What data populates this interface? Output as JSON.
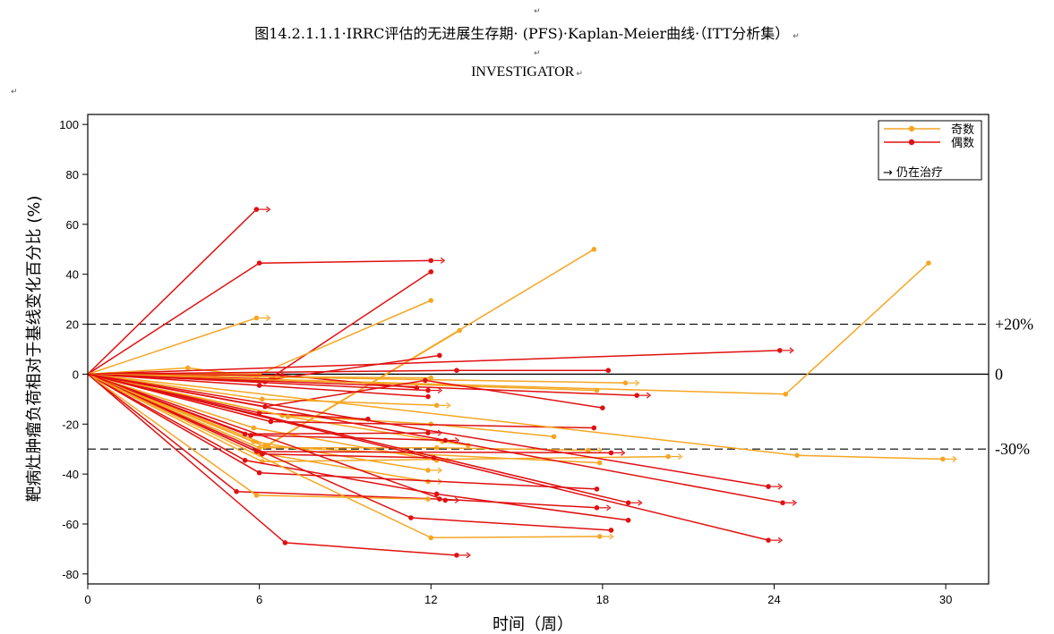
{
  "document": {
    "title": "图14.2.1.1.1·IRRC评估的无进展生存期· (PFS)·Kaplan-Meier曲线·（ITT分析集）",
    "subtitle": "INVESTIGATOR",
    "para_mark": "↵"
  },
  "chart_data": {
    "type": "line",
    "xlabel": "时间（周）",
    "ylabel": "靶病灶肿瘤负荷相对于基线变化百分比 (%)",
    "xlim": [
      0,
      31.5
    ],
    "ylim": [
      -84,
      104
    ],
    "xticks": [
      0,
      6,
      12,
      18,
      24,
      30
    ],
    "yticks": [
      100,
      80,
      60,
      40,
      20,
      0,
      -20,
      -40,
      -60,
      -80
    ],
    "reference_lines": [
      {
        "y": 20,
        "label": "+20%",
        "style": "dashed"
      },
      {
        "y": 0,
        "label": "0",
        "style": "solid"
      },
      {
        "y": -30,
        "label": "-30%",
        "style": "dashed"
      }
    ],
    "legend": {
      "position": "top-right",
      "entries": [
        {
          "label": "奇数",
          "color": "#F5A623"
        },
        {
          "label": "偶数",
          "color": "#E01010"
        }
      ],
      "ongoing_label": "→ 仍在治疗"
    },
    "colors": {
      "odd": "#F5A623",
      "even": "#E01010"
    },
    "series": [
      {
        "group": "even",
        "x": [
          0,
          5.9
        ],
        "y": [
          0,
          66
        ],
        "ongoing": true
      },
      {
        "group": "even",
        "x": [
          0,
          6,
          12
        ],
        "y": [
          0,
          44.5,
          45.5
        ],
        "ongoing": true
      },
      {
        "group": "even",
        "x": [
          0,
          6.2,
          12
        ],
        "y": [
          0,
          -3,
          41
        ]
      },
      {
        "group": "odd",
        "x": [
          0,
          5.9
        ],
        "y": [
          0,
          22.5
        ],
        "ongoing": true
      },
      {
        "group": "odd",
        "x": [
          0,
          6,
          12
        ],
        "y": [
          0,
          0,
          29.5
        ]
      },
      {
        "group": "odd",
        "x": [
          0,
          6.2,
          17.7
        ],
        "y": [
          0,
          -29,
          50
        ]
      },
      {
        "group": "odd",
        "x": [
          0,
          6.3,
          13
        ],
        "y": [
          0,
          -28.5,
          17.5
        ]
      },
      {
        "group": "odd",
        "x": [
          0,
          3.5,
          5.9,
          12
        ],
        "y": [
          0,
          2.5,
          -1,
          -1.5
        ]
      },
      {
        "group": "odd",
        "x": [
          0,
          24.4,
          29.4
        ],
        "y": [
          0,
          -8,
          44.5
        ]
      },
      {
        "group": "even",
        "x": [
          0,
          12.9,
          18.2
        ],
        "y": [
          0,
          1.5,
          1.5
        ]
      },
      {
        "group": "even",
        "x": [
          0,
          6.5,
          12.3
        ],
        "y": [
          0,
          -2,
          7.5
        ]
      },
      {
        "group": "even",
        "x": [
          0,
          24.2
        ],
        "y": [
          0,
          9.5
        ],
        "ongoing": true
      },
      {
        "group": "even",
        "x": [
          0,
          6.8,
          11.5
        ],
        "y": [
          0,
          -0.5,
          -5.5
        ]
      },
      {
        "group": "odd",
        "x": [
          0,
          18.8
        ],
        "y": [
          0,
          -3.5
        ],
        "ongoing": true
      },
      {
        "group": "odd",
        "x": [
          0,
          17.8
        ],
        "y": [
          0,
          -6.5
        ]
      },
      {
        "group": "even",
        "x": [
          0,
          19.2
        ],
        "y": [
          0,
          -8.5
        ],
        "ongoing": true
      },
      {
        "group": "even",
        "x": [
          0,
          11.9
        ],
        "y": [
          0,
          -6.5
        ],
        "ongoing": true
      },
      {
        "group": "even",
        "x": [
          0,
          6,
          11.9
        ],
        "y": [
          0,
          -4.5,
          -9
        ]
      },
      {
        "group": "odd",
        "x": [
          0,
          6.1,
          12.2
        ],
        "y": [
          0,
          -10,
          -12.5
        ],
        "ongoing": true
      },
      {
        "group": "even",
        "x": [
          0,
          6.2,
          11.8,
          18
        ],
        "y": [
          0,
          -13,
          -2.5,
          -13.5
        ]
      },
      {
        "group": "odd",
        "x": [
          0,
          6.8,
          12,
          16.3
        ],
        "y": [
          0,
          -16.5,
          -20,
          -25
        ]
      },
      {
        "group": "even",
        "x": [
          0,
          6,
          9.8
        ],
        "y": [
          0,
          -15.5,
          -18
        ]
      },
      {
        "group": "odd",
        "x": [
          0,
          7,
          12.4,
          13.3
        ],
        "y": [
          0,
          -17,
          -27,
          -28.5
        ]
      },
      {
        "group": "even",
        "x": [
          0,
          6.4,
          17.7
        ],
        "y": [
          0,
          -19,
          -21.5
        ]
      },
      {
        "group": "odd",
        "x": [
          0,
          5.8,
          12.2
        ],
        "y": [
          0,
          -21.5,
          -34.5
        ],
        "ongoing": true
      },
      {
        "group": "odd",
        "x": [
          0,
          5.8,
          11.9
        ],
        "y": [
          0,
          -27,
          -38.5
        ],
        "ongoing": true
      },
      {
        "group": "even",
        "x": [
          0,
          5.5,
          11.9
        ],
        "y": [
          0,
          -24,
          -23.5
        ],
        "ongoing": true
      },
      {
        "group": "even",
        "x": [
          0,
          5.7,
          12.5
        ],
        "y": [
          0,
          -24.5,
          -26.5
        ],
        "ongoing": true
      },
      {
        "group": "odd",
        "x": [
          0,
          6,
          12.2,
          17.5
        ],
        "y": [
          0,
          -29.5,
          -29.5,
          -30.5
        ],
        "ongoing": true
      },
      {
        "group": "odd",
        "x": [
          0,
          6.2,
          17.9
        ],
        "y": [
          0,
          -29,
          -35.5
        ]
      },
      {
        "group": "odd",
        "x": [
          0,
          6,
          11.9
        ],
        "y": [
          0,
          -31.5,
          -43
        ],
        "ongoing": true
      },
      {
        "group": "odd",
        "x": [
          0,
          6.1,
          20.3
        ],
        "y": [
          0,
          -35,
          -33
        ],
        "ongoing": true
      },
      {
        "group": "odd",
        "x": [
          0,
          24.8,
          29.9
        ],
        "y": [
          0,
          -32.5,
          -34
        ],
        "ongoing": true
      },
      {
        "group": "even",
        "x": [
          0,
          5.9,
          18.3
        ],
        "y": [
          0,
          -31,
          -31.5
        ],
        "ongoing": true
      },
      {
        "group": "even",
        "x": [
          0,
          6.1,
          12.1
        ],
        "y": [
          0,
          -32,
          -33.5
        ]
      },
      {
        "group": "even",
        "x": [
          0,
          5.5,
          12.2,
          18.9
        ],
        "y": [
          0,
          -34.5,
          -48,
          -58.5
        ]
      },
      {
        "group": "even",
        "x": [
          0,
          6,
          17.8
        ],
        "y": [
          0,
          -39.5,
          -46
        ]
      },
      {
        "group": "even",
        "x": [
          0,
          23.8
        ],
        "y": [
          0,
          -45
        ],
        "ongoing": true
      },
      {
        "group": "even",
        "x": [
          0,
          5.2,
          12.3,
          17.8
        ],
        "y": [
          0,
          -47,
          -50,
          -53.5
        ],
        "ongoing": true
      },
      {
        "group": "even",
        "x": [
          0,
          12.5
        ],
        "y": [
          0,
          -50.5
        ],
        "ongoing": true
      },
      {
        "group": "even",
        "x": [
          0,
          18.9
        ],
        "y": [
          0,
          -51.5
        ],
        "ongoing": true
      },
      {
        "group": "even",
        "x": [
          0,
          24.3
        ],
        "y": [
          0,
          -51.5
        ],
        "ongoing": true
      },
      {
        "group": "odd",
        "x": [
          0,
          5.9,
          11.9
        ],
        "y": [
          0,
          -48.5,
          -50
        ]
      },
      {
        "group": "even",
        "x": [
          0,
          11.3,
          18.3
        ],
        "y": [
          0,
          -57.5,
          -62.5
        ]
      },
      {
        "group": "odd",
        "x": [
          0,
          12,
          17.9
        ],
        "y": [
          0,
          -65.5,
          -65
        ],
        "ongoing": true
      },
      {
        "group": "even",
        "x": [
          0,
          23.8
        ],
        "y": [
          0,
          -66.5
        ],
        "ongoing": true
      },
      {
        "group": "even",
        "x": [
          0,
          6.9,
          12.9
        ],
        "y": [
          0,
          -67.5,
          -72.5
        ],
        "ongoing": true
      }
    ]
  }
}
